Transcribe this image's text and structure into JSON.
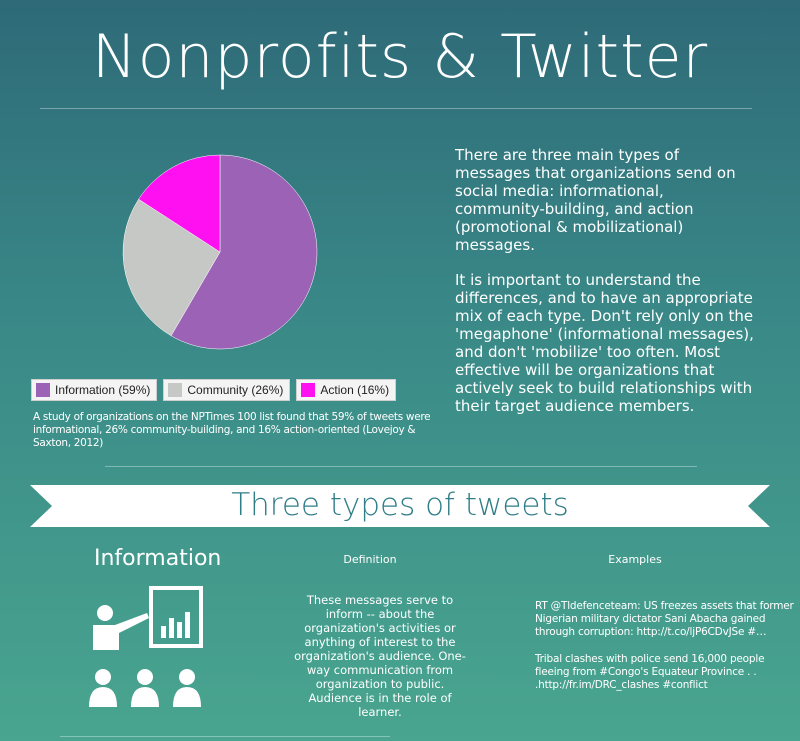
{
  "title": "Nonprofits & Twitter",
  "intro": {
    "paragraph1": "There are three main types of messages that organizations send on social media: informational, community-building, and action (promotional & mobilizational) messages.",
    "paragraph2": "It is important to understand the differences, and to have an appropriate mix of each type. Don't rely only on the 'megaphone' (informational messages), and don't 'mobilize' too often. Most effective will be organizations that actively seek to build relationships with their target audience members."
  },
  "chart_data": {
    "type": "pie",
    "categories": [
      "Information",
      "Community",
      "Action"
    ],
    "values": [
      59,
      26,
      16
    ],
    "legend_labels": [
      "Information (59%)",
      "Community (26%)",
      "Action (16%)"
    ],
    "colors": [
      "#9c62b6",
      "#c6c8c5",
      "#ff10f0"
    ],
    "legend_position": "bottom"
  },
  "caption": "A study of organizations on the NPTimes 100 list found that 59% of tweets were informational, 26% community-building, and 16% action-oriented (Lovejoy & Saxton, 2012)",
  "banner": {
    "text": "Three types of tweets",
    "color": "#ffffff",
    "text_color": "#2f7d86"
  },
  "section": {
    "heading": "Information",
    "definition_label": "Definition",
    "examples_label": "Examples",
    "definition": "These messages serve to inform -- about the organization's activities or anything of interest to the organization's audience. One-way communication from organization to public. Audience is in the role of learner.",
    "examples": [
      "RT @Tldefenceteam: US freezes assets that former Nigerian military dictator Sani Abacha gained through corruption: http://t.co/ljP6CDvJSe #…",
      "Tribal clashes with police send 16,000 people fleeing from #Congo's Equateur Province . . .http://fr.im/DRC_clashes #conflict"
    ],
    "icon": "presenter-audience-icon"
  }
}
